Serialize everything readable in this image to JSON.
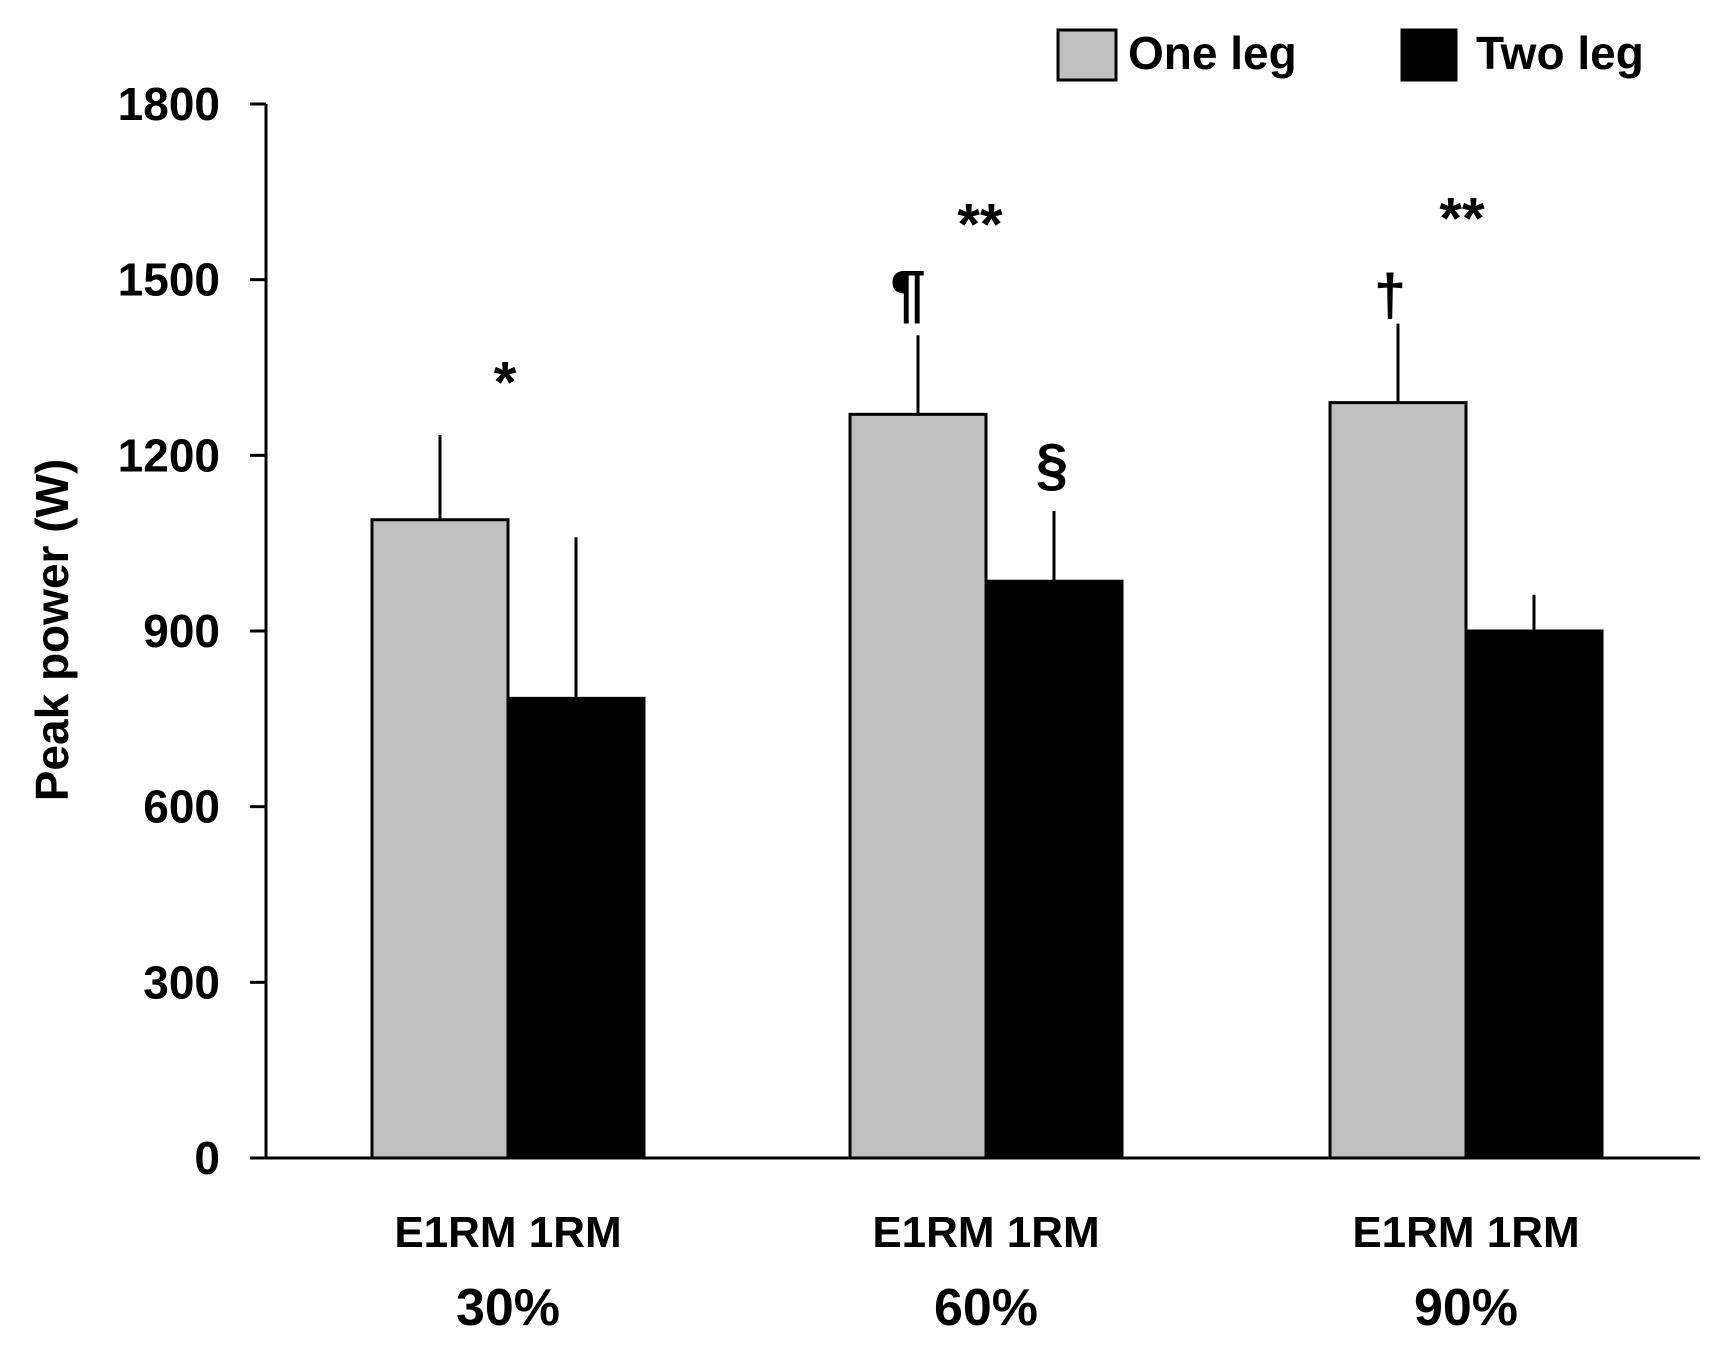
{
  "chart_data": {
    "type": "bar",
    "title": "",
    "xlabel": "",
    "ylabel": "Peak power (W)",
    "ylim": [
      0,
      1800
    ],
    "yticks": [
      0,
      300,
      600,
      900,
      1200,
      1500,
      1800
    ],
    "groups": [
      {
        "sub": "E1RM 1RM",
        "label": "30%"
      },
      {
        "sub": "E1RM 1RM",
        "label": "60%"
      },
      {
        "sub": "E1RM 1RM",
        "label": "90%"
      }
    ],
    "series": [
      {
        "name": "One leg",
        "color": "#c0c0c0",
        "values": [
          1090,
          1270,
          1290
        ],
        "errors": [
          145,
          135,
          135
        ]
      },
      {
        "name": "Two leg",
        "color": "#000000",
        "values": [
          785,
          985,
          900
        ],
        "errors": [
          275,
          120,
          62
        ]
      }
    ],
    "annotations": [
      {
        "text": "*",
        "group": 0,
        "y": 1290
      },
      {
        "text": "¶",
        "group": 1,
        "y": 1440
      },
      {
        "text": "**",
        "group": 1,
        "y": 1560
      },
      {
        "text": "§",
        "group": 1,
        "y": 1150
      },
      {
        "text": "†",
        "group": 2,
        "y": 1440
      },
      {
        "text": "**",
        "group": 2,
        "y": 1570
      }
    ],
    "grid": false,
    "legend_position": "top-right"
  }
}
